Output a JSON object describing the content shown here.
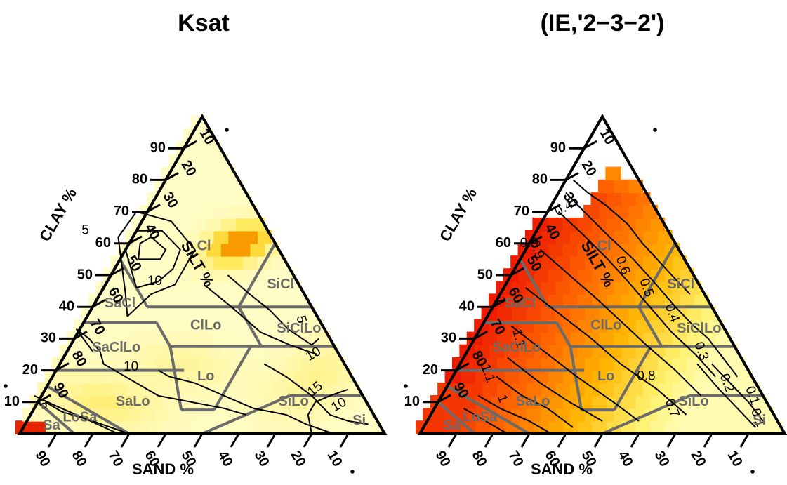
{
  "chart_data": [
    {
      "type": "heatmap",
      "chart_kind": "ternary soil texture contour plot",
      "title": "Ksat",
      "axes": {
        "clay": {
          "label": "CLAY %",
          "ticks": [
            10,
            20,
            30,
            40,
            50,
            60,
            70,
            80,
            90
          ]
        },
        "silt": {
          "label": "SILT %",
          "ticks": [
            10,
            20,
            30,
            40,
            50,
            60,
            70,
            80,
            90
          ]
        },
        "sand": {
          "label": "SAND %",
          "ticks": [
            90,
            80,
            70,
            60,
            50,
            40,
            30,
            20,
            10
          ]
        }
      },
      "texture_classes": [
        "Cl",
        "SiCl",
        "SaCl",
        "ClLo",
        "SiClLo",
        "SaClLo",
        "Lo",
        "SiLo",
        "SaLo",
        "Si",
        "LoSa",
        "Sa"
      ],
      "contour_levels": [
        "5",
        "10",
        "5",
        "10",
        "15",
        "10",
        "5",
        "10"
      ],
      "colors": {
        "low": "#ffffd4",
        "mid": "#ffe95a",
        "high": "#f58a00",
        "max": "#e82a00"
      }
    },
    {
      "type": "heatmap",
      "chart_kind": "ternary soil texture contour plot",
      "title": "(IE,'2−3−2')",
      "axes": {
        "clay": {
          "label": "CLAY %",
          "ticks": [
            10,
            20,
            30,
            40,
            50,
            60,
            70,
            80,
            90
          ]
        },
        "silt": {
          "label": "SILT %",
          "ticks": [
            10,
            20,
            30,
            40,
            50,
            60,
            70,
            80,
            90
          ]
        },
        "sand": {
          "label": "SAND %",
          "ticks": [
            90,
            80,
            70,
            60,
            50,
            40,
            30,
            20,
            10
          ]
        }
      },
      "texture_classes": [
        "Cl",
        "SiCl",
        "SaCl",
        "ClLo",
        "SiClLo",
        "SaClLo",
        "Lo",
        "SiLo",
        "SaLo",
        "Si",
        "LoSa",
        "Sa"
      ],
      "contour_levels": [
        "0.4",
        "0.9",
        "1",
        "1.1",
        "1.1",
        "1",
        "0.9",
        "0.8",
        "0.7",
        "0.6",
        "0.5",
        "0.4",
        "0.3",
        "0.2",
        "0.1",
        "0.1"
      ],
      "colors": {
        "low": "#ffffc0",
        "mid": "#ff9a00",
        "high": "#f03c00",
        "max": "#e82000"
      }
    }
  ]
}
